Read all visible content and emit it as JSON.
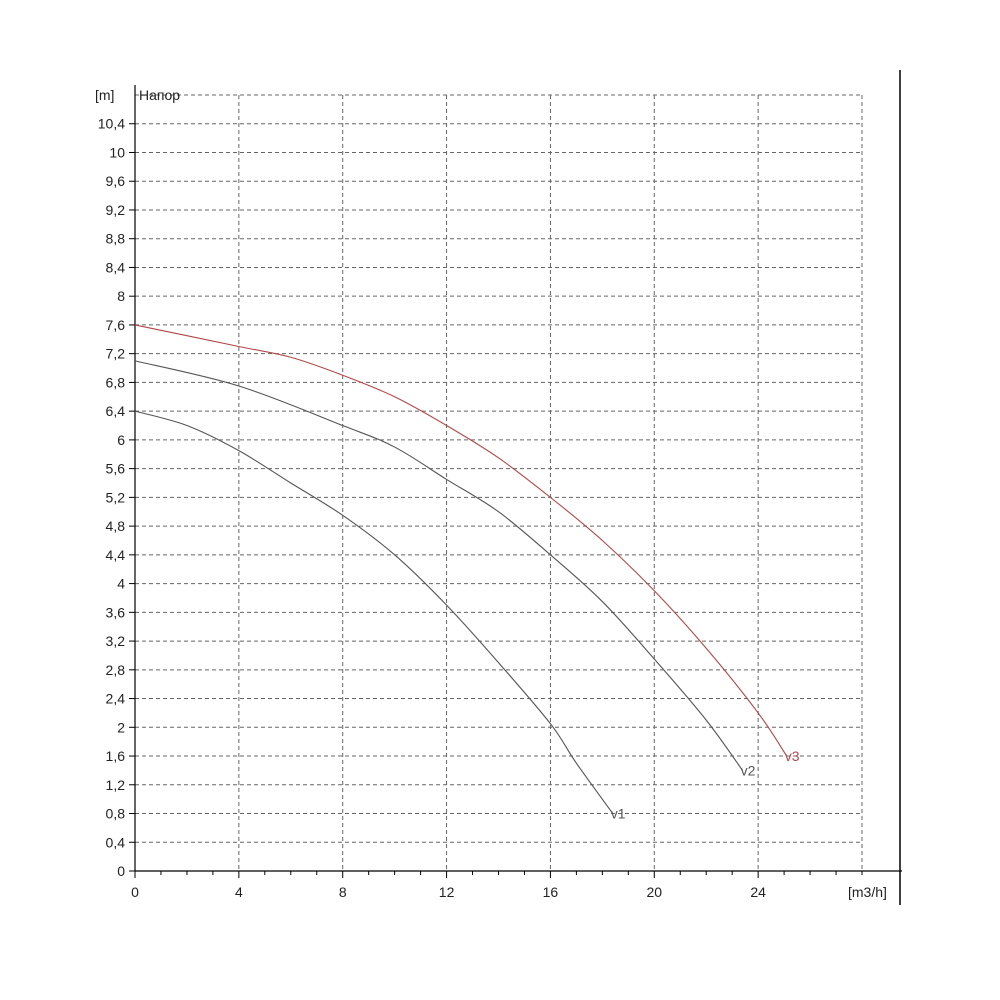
{
  "chart_data": {
    "type": "line",
    "title": "Напор",
    "xlabel": "[m3/h]",
    "ylabel": "[m]",
    "xlim": [
      0,
      28
    ],
    "ylim": [
      0,
      10.8
    ],
    "grid": true,
    "x_ticks": [
      0,
      4,
      8,
      12,
      16,
      20,
      24
    ],
    "x_tick_labels": [
      "0",
      "4",
      "8",
      "12",
      "16",
      "20",
      "24"
    ],
    "y_ticks": [
      0,
      0.4,
      0.8,
      1.2,
      1.6,
      2,
      2.4,
      2.8,
      3.2,
      3.6,
      4,
      4.4,
      4.8,
      5.2,
      5.6,
      6,
      6.4,
      6.8,
      7.2,
      7.6,
      8,
      8.4,
      8.8,
      9.2,
      9.6,
      10,
      10.4
    ],
    "y_tick_labels": [
      "0",
      "0,4",
      "0,8",
      "1,2",
      "1,6",
      "2",
      "2,4",
      "2,8",
      "3,2",
      "3,6",
      "4",
      "4,4",
      "4,8",
      "5,2",
      "5,6",
      "6",
      "6,4",
      "6,8",
      "7,2",
      "7,6",
      "8",
      "8,4",
      "8,8",
      "9,2",
      "9,6",
      "10",
      "10,4"
    ],
    "series": [
      {
        "name": "v1",
        "color": "#555555",
        "x": [
          0,
          2,
          4,
          6,
          8,
          10,
          12,
          14,
          16,
          17,
          18.4
        ],
        "y": [
          6.4,
          6.2,
          5.85,
          5.4,
          4.95,
          4.4,
          3.7,
          2.9,
          2.05,
          1.5,
          0.8
        ]
      },
      {
        "name": "v2",
        "color": "#555555",
        "x": [
          0,
          4,
          8,
          10,
          12,
          14,
          16,
          18,
          20,
          22,
          23.4
        ],
        "y": [
          7.1,
          6.75,
          6.2,
          5.9,
          5.45,
          5.0,
          4.4,
          3.75,
          2.95,
          2.1,
          1.4
        ]
      },
      {
        "name": "v3",
        "color": "#b04848",
        "x": [
          0,
          4,
          6,
          8,
          10,
          12,
          14,
          16,
          18,
          20,
          22,
          24,
          25.1
        ],
        "y": [
          7.6,
          7.3,
          7.15,
          6.9,
          6.6,
          6.2,
          5.75,
          5.2,
          4.6,
          3.9,
          3.1,
          2.2,
          1.6
        ]
      }
    ]
  }
}
